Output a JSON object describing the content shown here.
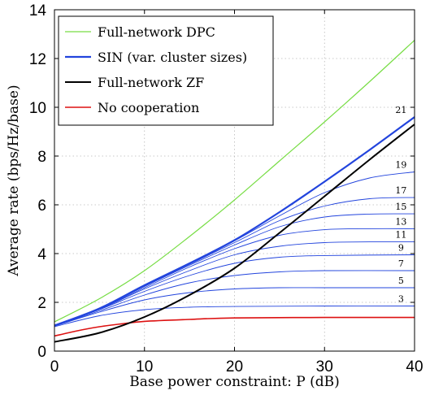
{
  "chart_data": {
    "type": "line",
    "xlabel": "Base power constraint: P (dB)",
    "ylabel": "Average rate (bps/Hz/base)",
    "xlim": [
      0,
      40
    ],
    "ylim": [
      0,
      14
    ],
    "xticks": [
      "0",
      "10",
      "20",
      "30",
      "40"
    ],
    "yticks": [
      "0",
      "2",
      "4",
      "6",
      "8",
      "10",
      "12",
      "14"
    ],
    "grid": true,
    "legend_position": "top-left",
    "colors": {
      "dpc": "#77dd44",
      "sin": "#2244dd",
      "zf": "#000000",
      "nocoop": "#dd1111"
    },
    "series": [
      {
        "name": "Full-network DPC",
        "color": "#77dd44",
        "width": 1.2,
        "x": [
          0,
          5,
          10,
          15,
          20,
          25,
          30,
          35,
          40
        ],
        "y": [
          1.2,
          2.15,
          3.3,
          4.7,
          6.2,
          7.8,
          9.4,
          11.05,
          12.75
        ]
      },
      {
        "name": "SIN (var. cluster sizes)",
        "color": "#2244dd",
        "width": 2.2,
        "x": [
          0,
          5,
          10,
          15,
          20,
          25,
          30,
          35,
          40
        ],
        "y": [
          1.05,
          1.75,
          2.7,
          3.6,
          4.55,
          5.7,
          6.95,
          8.25,
          9.6
        ]
      },
      {
        "name": "Full-network ZF",
        "color": "#000000",
        "width": 2.0,
        "x": [
          0,
          5,
          10,
          15,
          20,
          25,
          30,
          35,
          40
        ],
        "y": [
          0.38,
          0.75,
          1.4,
          2.3,
          3.4,
          4.85,
          6.35,
          7.85,
          9.3
        ]
      },
      {
        "name": "No cooperation",
        "color": "#dd1111",
        "width": 1.6,
        "x": [
          0,
          2.5,
          5,
          7.5,
          10,
          15,
          20,
          30,
          40
        ],
        "y": [
          0.62,
          0.83,
          1.0,
          1.12,
          1.22,
          1.3,
          1.36,
          1.38,
          1.38
        ]
      }
    ],
    "cluster_curves": [
      {
        "label": "3",
        "x": [
          0,
          5,
          10,
          15,
          20,
          30,
          40
        ],
        "y": [
          1.0,
          1.45,
          1.7,
          1.8,
          1.83,
          1.85,
          1.85
        ]
      },
      {
        "label": "5",
        "x": [
          0,
          5,
          10,
          15,
          20,
          25,
          30,
          40
        ],
        "y": [
          1.02,
          1.6,
          2.1,
          2.4,
          2.55,
          2.6,
          2.6,
          2.6
        ]
      },
      {
        "label": "7",
        "x": [
          0,
          5,
          10,
          15,
          20,
          25,
          30,
          40
        ],
        "y": [
          1.03,
          1.65,
          2.3,
          2.8,
          3.1,
          3.25,
          3.3,
          3.3
        ]
      },
      {
        "label": "9",
        "x": [
          0,
          5,
          10,
          15,
          20,
          25,
          30,
          40
        ],
        "y": [
          1.04,
          1.7,
          2.45,
          3.1,
          3.6,
          3.85,
          3.92,
          3.95
        ]
      },
      {
        "label": "11",
        "x": [
          0,
          5,
          10,
          15,
          20,
          25,
          30,
          35,
          40
        ],
        "y": [
          1.04,
          1.72,
          2.55,
          3.3,
          3.95,
          4.3,
          4.45,
          4.48,
          4.48
        ]
      },
      {
        "label": "13",
        "x": [
          0,
          5,
          10,
          15,
          20,
          25,
          30,
          35,
          40
        ],
        "y": [
          1.05,
          1.73,
          2.6,
          3.45,
          4.2,
          4.75,
          4.98,
          5.02,
          5.02
        ]
      },
      {
        "label": "15",
        "x": [
          0,
          5,
          10,
          15,
          20,
          25,
          30,
          35,
          40
        ],
        "y": [
          1.05,
          1.74,
          2.65,
          3.52,
          4.35,
          5.1,
          5.5,
          5.62,
          5.63
        ]
      },
      {
        "label": "17",
        "x": [
          0,
          5,
          10,
          15,
          20,
          25,
          30,
          35,
          40
        ],
        "y": [
          1.05,
          1.75,
          2.67,
          3.56,
          4.45,
          5.35,
          5.95,
          6.25,
          6.3
        ]
      },
      {
        "label": "19",
        "x": [
          0,
          5,
          10,
          15,
          20,
          25,
          30,
          35,
          40
        ],
        "y": [
          1.05,
          1.75,
          2.69,
          3.58,
          4.52,
          5.55,
          6.5,
          7.1,
          7.35
        ]
      },
      {
        "label": "21",
        "x": [],
        "y": []
      }
    ]
  }
}
